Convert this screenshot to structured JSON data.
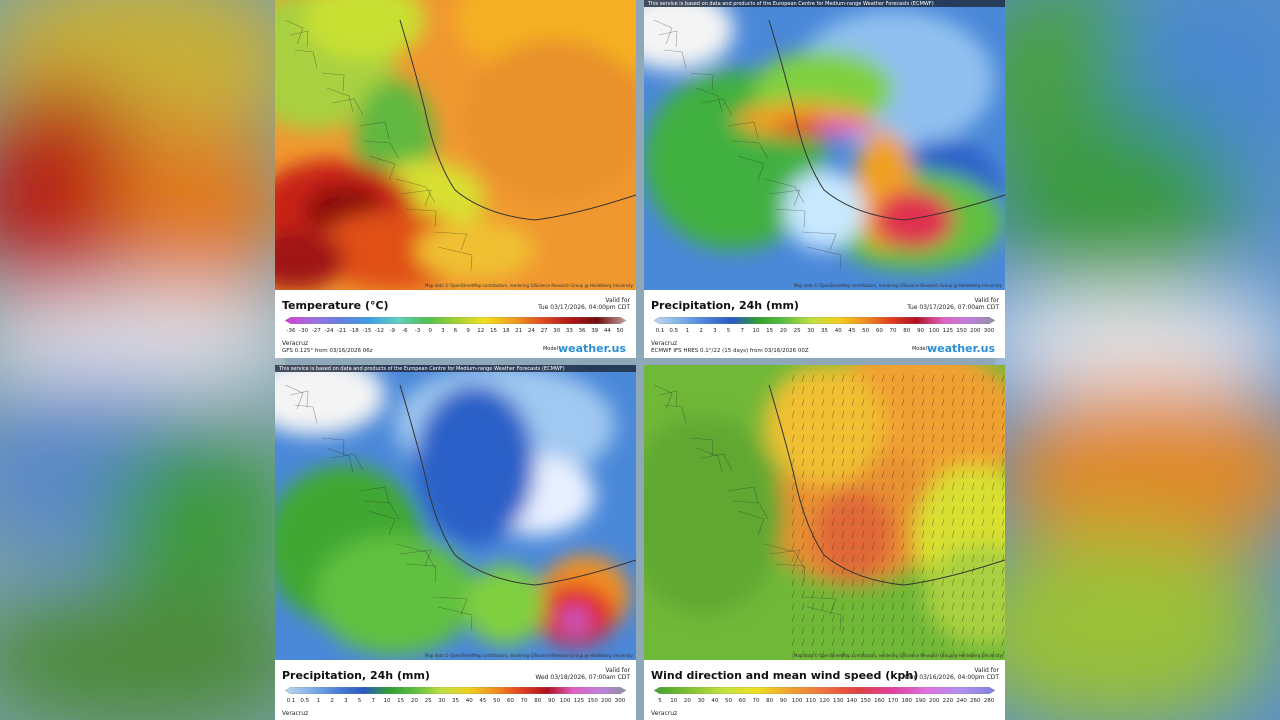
{
  "panels": [
    {
      "title": "Temperature (°C)",
      "valid_label": "Valid for",
      "valid": "Tue 03/17/2026, 04:00pm CDT",
      "scale": [
        -36,
        -30,
        -27,
        -24,
        -21,
        -18,
        -15,
        -12,
        -9,
        -6,
        -3,
        0,
        3,
        6,
        9,
        12,
        15,
        18,
        21,
        24,
        27,
        30,
        33,
        36,
        39,
        44,
        50
      ],
      "location": "Veracruz",
      "source": "GFS 0.125° from 03/16/2026 06z",
      "model_label": "Model",
      "brand": "weather.us",
      "attribution": "Map data © OpenStreetMap contributors, rendering GIScience Research Group @ Heidelberg University"
    },
    {
      "title": "Precipitation, 24h (mm)",
      "valid_label": "Valid for",
      "valid": "Tue 03/17/2026, 07:00am CDT",
      "scale": [
        0.1,
        0.5,
        1,
        2,
        3,
        5,
        7,
        10,
        15,
        20,
        25,
        30,
        35,
        40,
        45,
        50,
        60,
        70,
        80,
        90,
        100,
        125,
        150,
        200,
        300
      ],
      "location": "Veracruz",
      "source": "ECMWF IFS HRES 0.1°/22 (15 days) from 03/16/2026 00Z",
      "model_label": "Model",
      "brand": "weather.us",
      "banner": "This service is based on data and products of the European Centre for Medium-range Weather Forecasts (ECMWF)",
      "attribution": "Map data © OpenStreetMap contributors, rendering GIScience Research Group @ Heidelberg University"
    },
    {
      "title": "Precipitation, 24h (mm)",
      "valid_label": "Valid for",
      "valid": "Wed 03/18/2026, 07:00am CDT",
      "scale": [
        0.1,
        0.5,
        1,
        2,
        3,
        5,
        7,
        10,
        15,
        20,
        25,
        30,
        35,
        40,
        45,
        50,
        60,
        70,
        80,
        90,
        100,
        125,
        150,
        200,
        300
      ],
      "location": "Veracruz",
      "banner": "This service is based on data and products of the European Centre for Medium-range Weather Forecasts (ECMWF)",
      "attribution": "Map data © OpenStreetMap contributors, rendering GIScience Research Group @ Heidelberg University"
    },
    {
      "title": "Wind direction and mean wind speed (kph)",
      "valid_label": "Valid for",
      "valid": "Mon 03/16/2026, 04:00pm CDT",
      "scale": [
        5,
        10,
        20,
        30,
        40,
        50,
        60,
        70,
        80,
        90,
        100,
        110,
        120,
        130,
        140,
        150,
        160,
        170,
        180,
        190,
        200,
        220,
        240,
        260,
        280
      ],
      "location": "Veracruz",
      "attribution": "Map data © OpenStreetMap contributors, rendering GIScience Research Group @ Heidelberg University"
    }
  ]
}
